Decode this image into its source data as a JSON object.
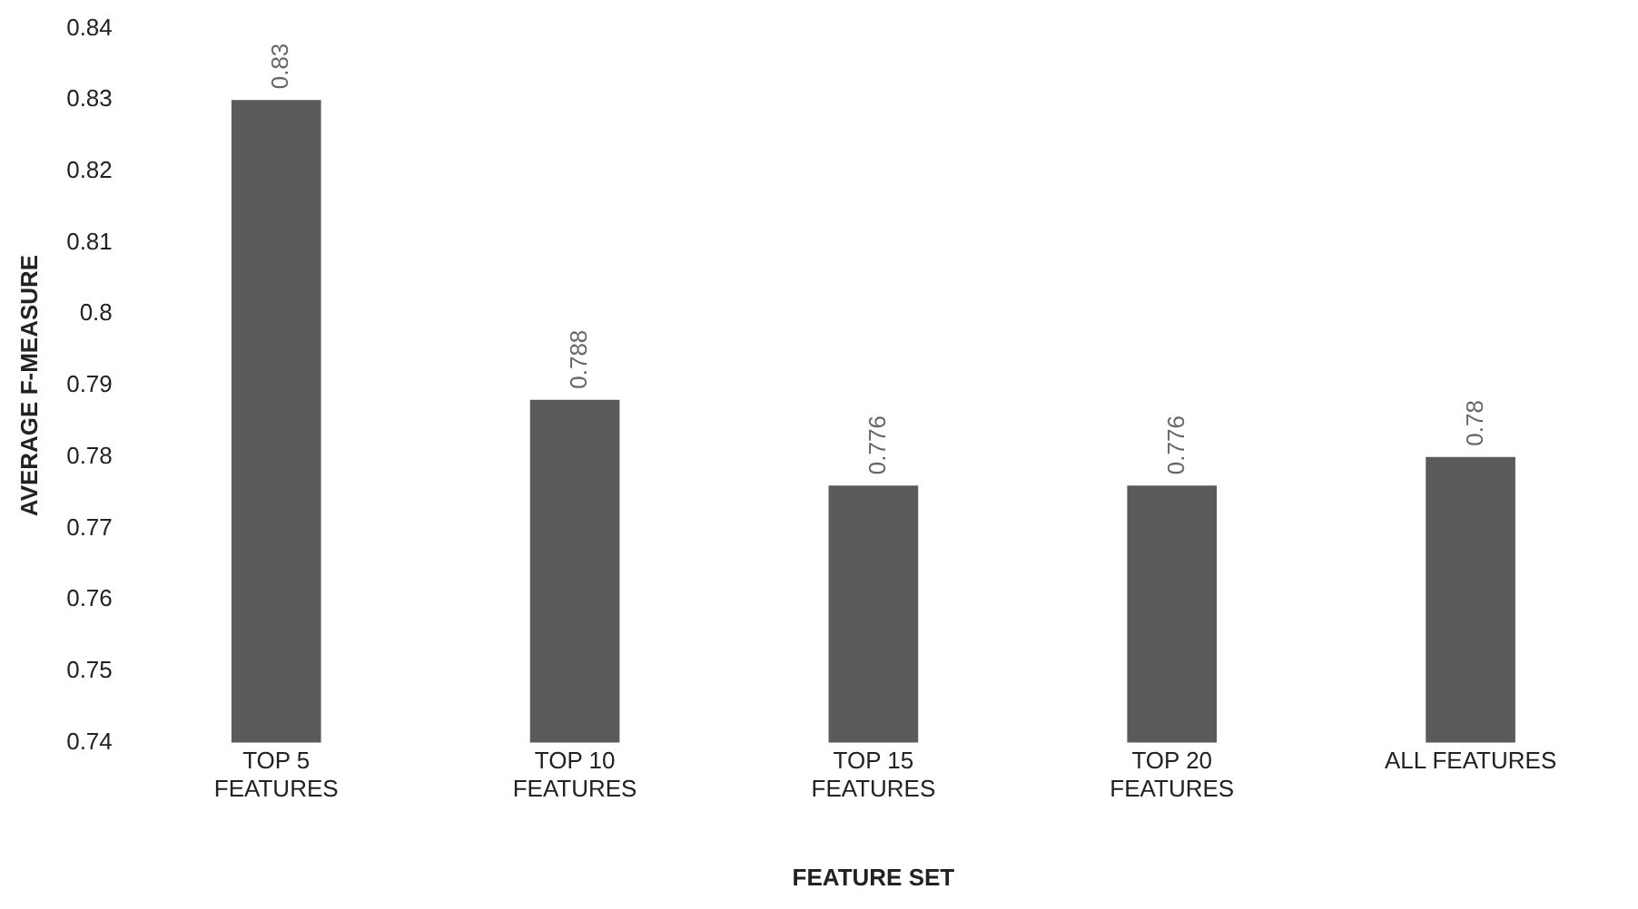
{
  "chart_data": {
    "type": "bar",
    "xlabel": "FEATURE SET",
    "ylabel": "AVERAGE F-MEASURE",
    "categories": [
      "TOP 5 FEATURES",
      "TOP 10 FEATURES",
      "TOP 15 FEATURES",
      "TOP 20 FEATURES",
      "ALL FEATURES"
    ],
    "values": [
      0.83,
      0.788,
      0.776,
      0.776,
      0.78
    ],
    "color": "#5a5a5a",
    "ylim": [
      0.74,
      0.84
    ],
    "yticks": [
      0.74,
      0.75,
      0.76,
      0.77,
      0.78,
      0.79,
      0.8,
      0.81,
      0.82,
      0.83,
      0.84
    ],
    "data_labels": true,
    "grid": false,
    "legend": false
  }
}
